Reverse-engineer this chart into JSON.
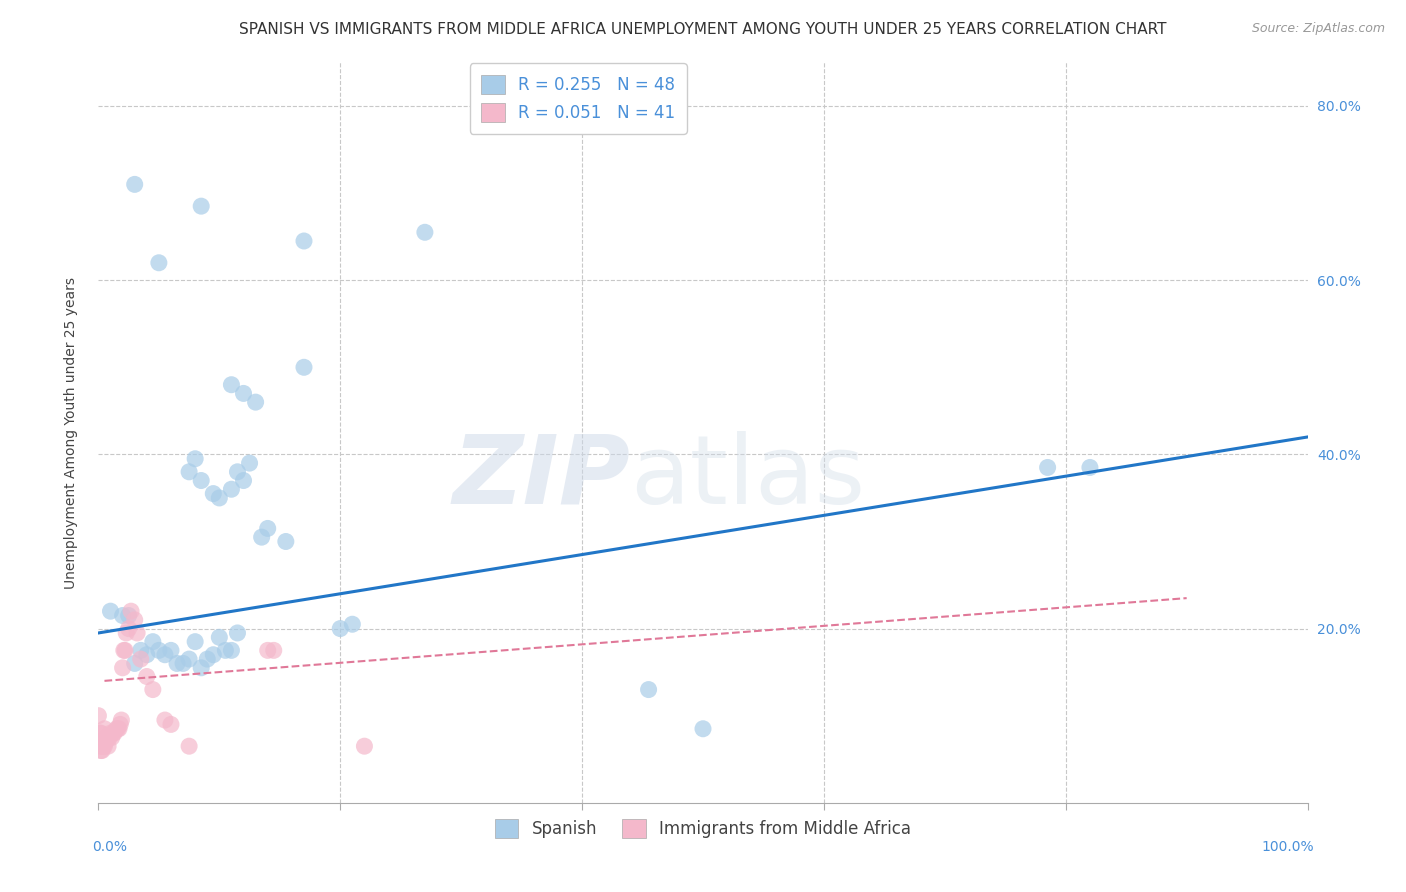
{
  "title": "SPANISH VS IMMIGRANTS FROM MIDDLE AFRICA UNEMPLOYMENT AMONG YOUTH UNDER 25 YEARS CORRELATION CHART",
  "source": "Source: ZipAtlas.com",
  "ylabel": "Unemployment Among Youth under 25 years",
  "watermark_zip": "ZIP",
  "watermark_atlas": "atlas",
  "blue_R_label": "R = 0.255",
  "blue_N_label": "N = 48",
  "pink_R_label": "R = 0.051",
  "pink_N_label": "N = 41",
  "legend_label_blue": "Spanish",
  "legend_label_pink": "Immigrants from Middle Africa",
  "blue_color": "#a8cce8",
  "pink_color": "#f4b8cb",
  "blue_line_color": "#2176c7",
  "pink_line_color": "#e07898",
  "rn_color": "#4a90d9",
  "right_tick_color": "#4a90d9",
  "blue_scatter_x": [
    0.03,
    0.085,
    0.17,
    0.27,
    0.05,
    0.11,
    0.12,
    0.13,
    0.17,
    0.075,
    0.08,
    0.085,
    0.095,
    0.1,
    0.11,
    0.115,
    0.12,
    0.125,
    0.135,
    0.14,
    0.155,
    0.01,
    0.02,
    0.025,
    0.03,
    0.035,
    0.04,
    0.045,
    0.05,
    0.055,
    0.06,
    0.065,
    0.07,
    0.075,
    0.08,
    0.085,
    0.09,
    0.095,
    0.1,
    0.105,
    0.11,
    0.115,
    0.2,
    0.21,
    0.785,
    0.82,
    0.455,
    0.5
  ],
  "blue_scatter_y": [
    0.71,
    0.685,
    0.645,
    0.655,
    0.62,
    0.48,
    0.47,
    0.46,
    0.5,
    0.38,
    0.395,
    0.37,
    0.355,
    0.35,
    0.36,
    0.38,
    0.37,
    0.39,
    0.305,
    0.315,
    0.3,
    0.22,
    0.215,
    0.215,
    0.16,
    0.175,
    0.17,
    0.185,
    0.175,
    0.17,
    0.175,
    0.16,
    0.16,
    0.165,
    0.185,
    0.155,
    0.165,
    0.17,
    0.19,
    0.175,
    0.175,
    0.195,
    0.2,
    0.205,
    0.385,
    0.385,
    0.13,
    0.085
  ],
  "pink_scatter_x": [
    0.0,
    0.0,
    0.001,
    0.001,
    0.002,
    0.002,
    0.003,
    0.003,
    0.004,
    0.005,
    0.005,
    0.006,
    0.007,
    0.008,
    0.009,
    0.01,
    0.011,
    0.012,
    0.013,
    0.015,
    0.016,
    0.017,
    0.018,
    0.019,
    0.02,
    0.021,
    0.022,
    0.023,
    0.025,
    0.027,
    0.03,
    0.032,
    0.035,
    0.04,
    0.045,
    0.055,
    0.06,
    0.075,
    0.14,
    0.145,
    0.22
  ],
  "pink_scatter_y": [
    0.1,
    0.07,
    0.08,
    0.065,
    0.08,
    0.06,
    0.065,
    0.06,
    0.065,
    0.085,
    0.065,
    0.07,
    0.075,
    0.065,
    0.075,
    0.08,
    0.075,
    0.08,
    0.08,
    0.085,
    0.085,
    0.085,
    0.09,
    0.095,
    0.155,
    0.175,
    0.175,
    0.195,
    0.2,
    0.22,
    0.21,
    0.195,
    0.165,
    0.145,
    0.13,
    0.095,
    0.09,
    0.065,
    0.175,
    0.175,
    0.065
  ],
  "blue_line_x": [
    0.0,
    1.0
  ],
  "blue_line_y": [
    0.195,
    0.42
  ],
  "pink_line_x": [
    0.005,
    0.9
  ],
  "pink_line_y": [
    0.14,
    0.235
  ],
  "ylim": [
    0.0,
    0.85
  ],
  "xlim": [
    0.0,
    1.0
  ],
  "yticks": [
    0.0,
    0.2,
    0.4,
    0.6,
    0.8
  ],
  "ytick_labels_right": [
    "",
    "20.0%",
    "40.0%",
    "60.0%",
    "80.0%"
  ],
  "grid_color": "#c8c8c8",
  "spine_color": "#aaaaaa",
  "background_color": "#ffffff",
  "title_fontsize": 11,
  "axis_label_fontsize": 10,
  "tick_fontsize": 10,
  "source_fontsize": 9,
  "legend_fontsize": 12
}
